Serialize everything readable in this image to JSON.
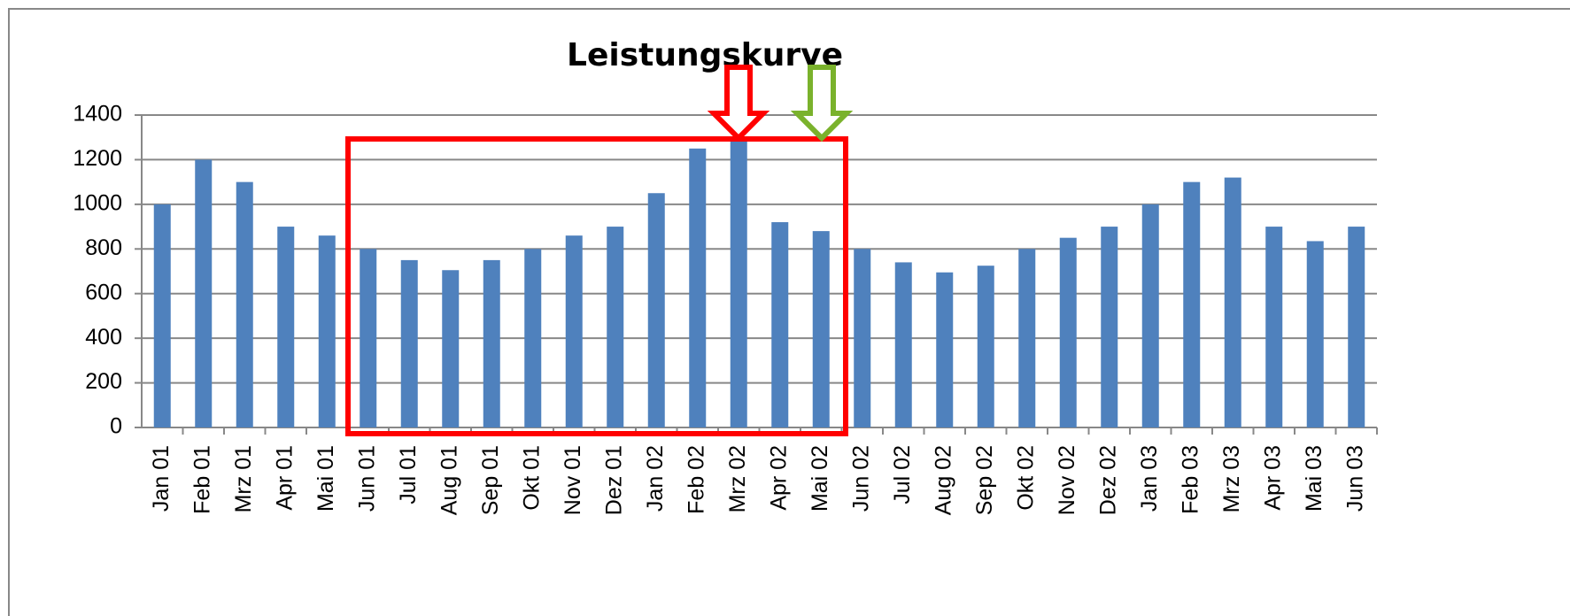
{
  "chart_data": {
    "type": "bar",
    "title": "Leistungskurve",
    "categories": [
      "Jan 01",
      "Feb 01",
      "Mrz 01",
      "Apr 01",
      "Mai 01",
      "Jun 01",
      "Jul 01",
      "Aug 01",
      "Sep 01",
      "Okt 01",
      "Nov 01",
      "Dez 01",
      "Jan 02",
      "Feb 02",
      "Mrz 02",
      "Apr 02",
      "Mai 02",
      "Jun 02",
      "Jul 02",
      "Aug 02",
      "Sep 02",
      "Okt 02",
      "Nov 02",
      "Dez 02",
      "Jan 03",
      "Feb 03",
      "Mrz 03",
      "Apr 03",
      "Mai 03",
      "Jun 03"
    ],
    "values": [
      1000,
      1200,
      1100,
      900,
      860,
      800,
      750,
      705,
      750,
      800,
      860,
      900,
      1050,
      1250,
      1300,
      920,
      880,
      800,
      740,
      695,
      725,
      800,
      850,
      900,
      1000,
      1100,
      1120,
      900,
      835,
      900
    ],
    "color": "#4f81bd",
    "ylim": [
      0,
      1400
    ],
    "yticks": [
      0,
      200,
      400,
      600,
      800,
      1000,
      1200,
      1400
    ],
    "grid": true
  }
}
